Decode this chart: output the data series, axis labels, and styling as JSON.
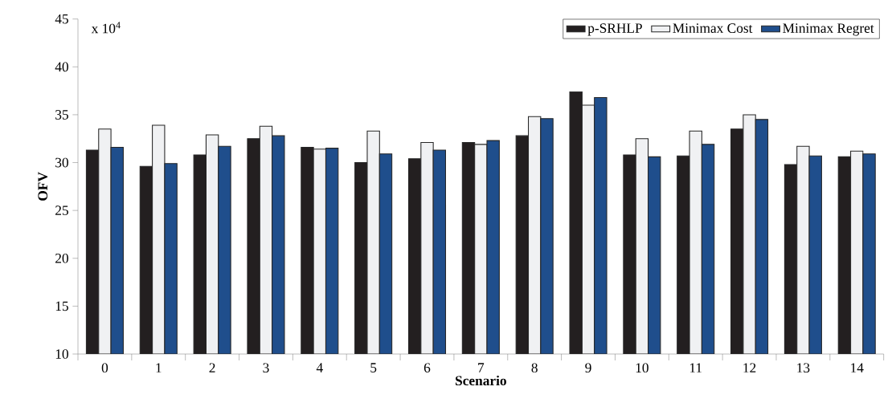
{
  "chart_data": {
    "type": "bar",
    "xlabel": "Scenario",
    "ylabel": "OFV",
    "annotations": [
      "x 10$^{4}$"
    ],
    "categories": [
      "0",
      "1",
      "2",
      "3",
      "4",
      "5",
      "6",
      "7",
      "8",
      "9",
      "10",
      "11",
      "12",
      "13",
      "14"
    ],
    "series": [
      {
        "name": "p-SRHLP",
        "color": "#231f20",
        "values": [
          31.3,
          29.6,
          30.8,
          32.5,
          31.6,
          30.0,
          30.4,
          32.1,
          32.8,
          37.4,
          30.8,
          30.7,
          33.5,
          29.8,
          30.6
        ]
      },
      {
        "name": "Minimax Cost",
        "color": "#f0f1f3",
        "values": [
          33.5,
          33.9,
          32.9,
          33.8,
          31.4,
          33.3,
          32.1,
          31.9,
          34.8,
          36.0,
          32.5,
          33.3,
          35.0,
          31.7,
          31.2
        ]
      },
      {
        "name": "Minimax Regret",
        "color": "#1f4e8c",
        "values": [
          31.6,
          29.9,
          31.7,
          32.8,
          31.5,
          30.9,
          31.3,
          32.3,
          34.6,
          36.8,
          30.6,
          31.9,
          34.5,
          30.7,
          30.9
        ]
      }
    ],
    "ylim": [
      10,
      45
    ],
    "yticks": [
      10,
      15,
      20,
      25,
      30,
      35,
      40,
      45
    ],
    "legend": "top right"
  }
}
